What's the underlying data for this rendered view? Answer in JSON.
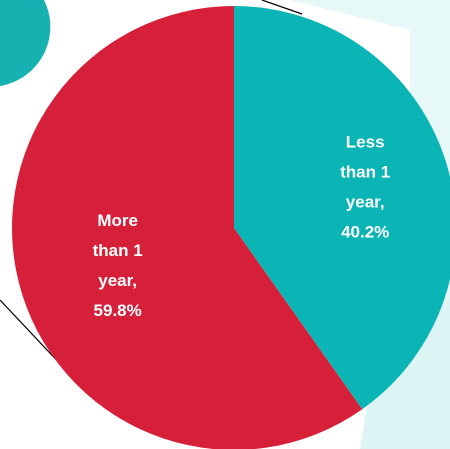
{
  "chart_data": {
    "type": "pie",
    "slices": [
      {
        "label_lines": [
          "Less",
          "than 1",
          "year,",
          "40.2%"
        ],
        "category": "Less than 1 year",
        "value": 40.2,
        "color": "#0BB5B5"
      },
      {
        "label_lines": [
          "More",
          "than 1",
          "year,",
          "59.8%"
        ],
        "category": "More than 1 year",
        "value": 59.8,
        "color": "#D62039"
      }
    ],
    "start_angle_deg": 0,
    "direction": "clockwise",
    "legend": "none"
  },
  "decor": {
    "background_panel_color": "#E6F8F8",
    "corner_circle_color": "#16B2B2"
  }
}
